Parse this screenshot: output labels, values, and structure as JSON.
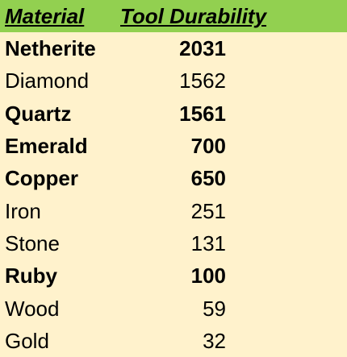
{
  "header": {
    "material": "Material",
    "durability": "Tool Durability"
  },
  "rows": [
    {
      "material": "Netherite",
      "durability": "2031",
      "bold": true
    },
    {
      "material": "Diamond",
      "durability": "1562",
      "bold": false
    },
    {
      "material": "Quartz",
      "durability": "1561",
      "bold": true
    },
    {
      "material": "Emerald",
      "durability": "700",
      "bold": true
    },
    {
      "material": "Copper",
      "durability": "650",
      "bold": true
    },
    {
      "material": "Iron",
      "durability": "251",
      "bold": false
    },
    {
      "material": "Stone",
      "durability": "131",
      "bold": false
    },
    {
      "material": "Ruby",
      "durability": "100",
      "bold": true
    },
    {
      "material": "Wood",
      "durability": "59",
      "bold": false
    },
    {
      "material": "Gold",
      "durability": "32",
      "bold": false
    }
  ],
  "colors": {
    "header_background": "#92D050",
    "body_background": "#FFF2CC",
    "text": "#000000"
  }
}
